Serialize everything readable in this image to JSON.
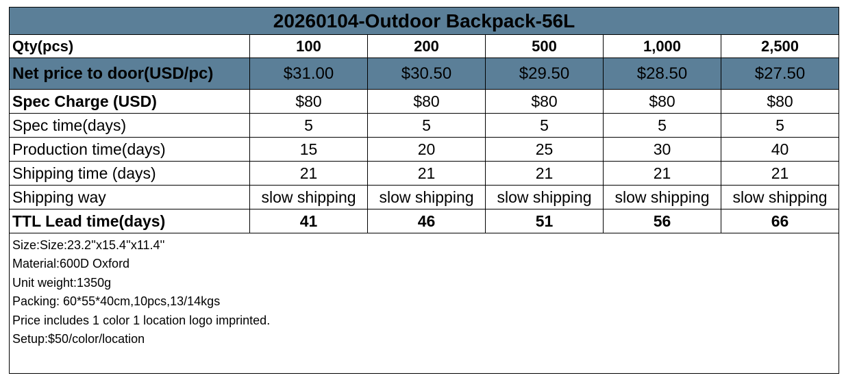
{
  "title": "20260104-Outdoor Backpack-56L",
  "rows": [
    {
      "label": "Qty(pcs)",
      "values": [
        "100",
        "200",
        "500",
        "1,000",
        "2,500"
      ]
    },
    {
      "label": "Net price to door(USD/pc)",
      "values": [
        "$31.00",
        "$30.50",
        "$29.50",
        "$28.50",
        "$27.50"
      ]
    },
    {
      "label": "Spec Charge (USD)",
      "values": [
        "$80",
        "$80",
        "$80",
        "$80",
        "$80"
      ]
    },
    {
      "label": "Spec time(days)",
      "values": [
        "5",
        "5",
        "5",
        "5",
        "5"
      ]
    },
    {
      "label": "Production time(days)",
      "values": [
        "15",
        "20",
        "25",
        "30",
        "40"
      ]
    },
    {
      "label": "Shipping time (days)",
      "values": [
        "21",
        "21",
        "21",
        "21",
        "21"
      ]
    },
    {
      "label": "Shipping way",
      "values": [
        "slow shipping",
        "slow shipping",
        "slow shipping",
        "slow shipping",
        "slow shipping"
      ]
    },
    {
      "label": "TTL Lead time(days)",
      "values": [
        "41",
        "46",
        "51",
        "56",
        "66"
      ]
    }
  ],
  "notes": [
    "Size:Size:23.2''x15.4''x11.4''",
    "Material:600D Oxford",
    "Unit weight:1350g",
    "Packing: 60*55*40cm,10pcs,13/14kgs",
    "Price includes 1 color 1 location logo imprinted.",
    "Setup:$50/color/location"
  ],
  "colors": {
    "header_fill": "#5b7f98",
    "border": "#000000"
  }
}
